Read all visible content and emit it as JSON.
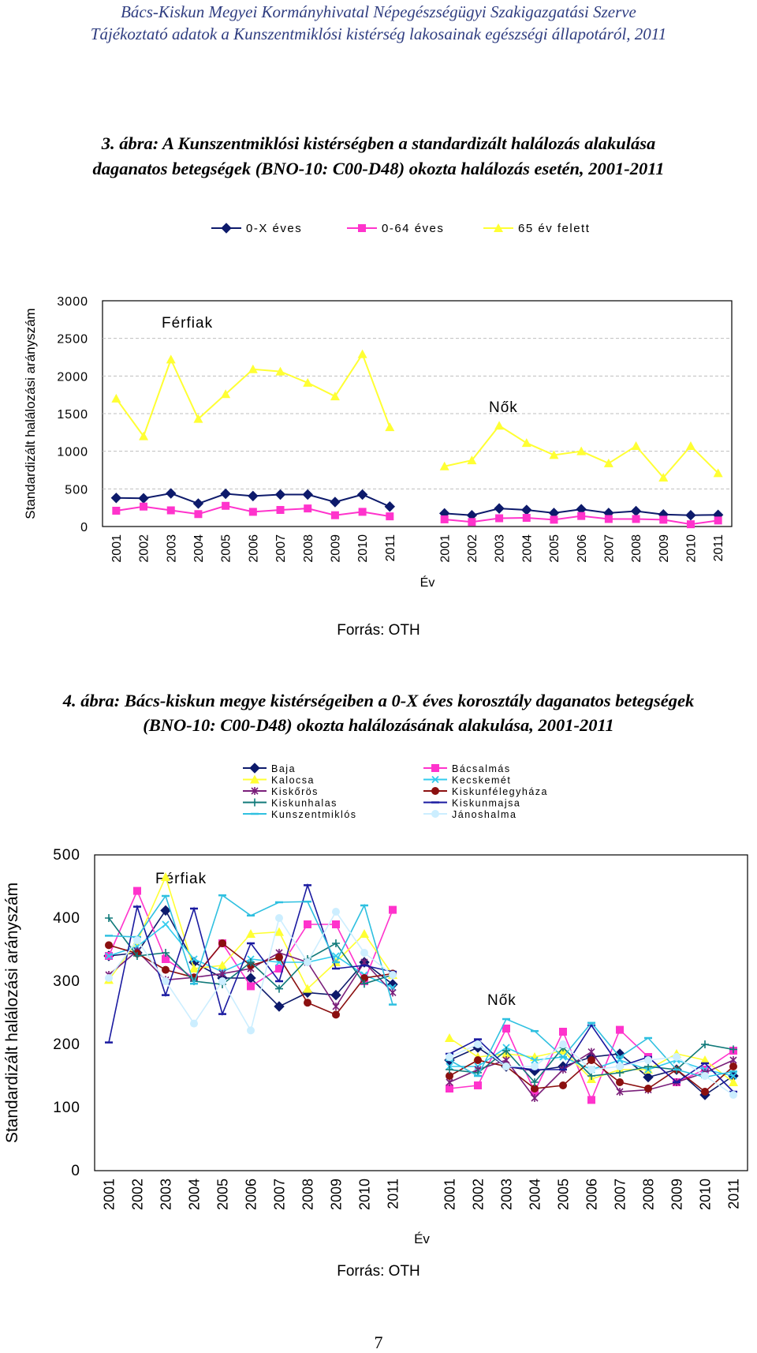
{
  "header": {
    "line1": "Bács-Kiskun Megyei Kormányhivatal Népegészségügyi Szakigazgatási Szerve",
    "line2": "Tájékoztató adatok a Kunszentmiklósi kistérség lakosainak egészségi állapotáról, 2011"
  },
  "figure3": {
    "caption_line1": "3. ábra: A Kunszentmiklósi kistérségben a standardizált halálozás alakulása",
    "caption_line2": "daganatos betegségek (BNO-10: C00-D48) okozta halálozás esetén, 2001-2011",
    "source": "Forrás: OTH"
  },
  "figure4": {
    "caption_line1": "4. ábra: Bács-kiskun megye kistérségeiben a 0-X éves korosztály daganatos betegségek",
    "caption_line2": "(BNO-10: C00-D48) okozta halálozásának alakulása, 2001-2011",
    "source": "Forrás: OTH"
  },
  "page_number": "7",
  "chart_data": [
    {
      "type": "line",
      "ylabel": "Standardizált halálozási arányszám",
      "xlabel": "Év",
      "ylim": [
        0,
        3000
      ],
      "yticks": [
        0,
        500,
        1000,
        1500,
        2000,
        2500,
        3000
      ],
      "grid": true,
      "legend_position": "top",
      "groups": [
        {
          "label": "Férfiak",
          "categories": [
            "2001",
            "2002",
            "2003",
            "2004",
            "2005",
            "2006",
            "2007",
            "2008",
            "2009",
            "2010",
            "2011"
          ]
        },
        {
          "label": "Nők",
          "categories": [
            "2001",
            "2002",
            "2003",
            "2004",
            "2005",
            "2006",
            "2007",
            "2008",
            "2009",
            "2010",
            "2011"
          ]
        }
      ],
      "series": [
        {
          "name": "0-X éves",
          "color": "#0d1a6b",
          "marker": "diamond",
          "men": [
            380,
            375,
            440,
            305,
            435,
            405,
            425,
            425,
            325,
            425,
            265
          ],
          "women": [
            175,
            150,
            240,
            220,
            180,
            230,
            180,
            205,
            160,
            150,
            155
          ]
        },
        {
          "name": "0-64 éves",
          "color": "#ff33cc",
          "marker": "square",
          "men": [
            210,
            265,
            215,
            165,
            275,
            195,
            220,
            240,
            150,
            195,
            135
          ],
          "women": [
            95,
            60,
            110,
            115,
            90,
            140,
            100,
            100,
            90,
            30,
            80
          ]
        },
        {
          "name": "65 év felett",
          "color": "#ffff33",
          "marker": "triangle",
          "men": [
            1700,
            1200,
            2220,
            1430,
            1760,
            2090,
            2060,
            1910,
            1730,
            2290,
            1320
          ],
          "women": [
            800,
            880,
            1340,
            1110,
            950,
            1000,
            840,
            1070,
            650,
            1070,
            710
          ]
        }
      ]
    },
    {
      "type": "line",
      "ylabel": "Standardizált halálozási arányszám",
      "xlabel": "Év",
      "ylim": [
        0,
        500
      ],
      "yticks": [
        0,
        100,
        200,
        300,
        400,
        500
      ],
      "grid": false,
      "legend_position": "top",
      "groups": [
        {
          "label": "Férfiak",
          "categories": [
            "2001",
            "2002",
            "2003",
            "2004",
            "2005",
            "2006",
            "2007",
            "2008",
            "2009",
            "2010",
            "2011"
          ]
        },
        {
          "label": "Nők",
          "categories": [
            "2001",
            "2002",
            "2003",
            "2004",
            "2005",
            "2006",
            "2007",
            "2008",
            "2009",
            "2010",
            "2011"
          ]
        }
      ],
      "series": [
        {
          "name": "Baja",
          "color": "#0d1a6b",
          "marker": "diamond",
          "men": [
            340,
            345,
            412,
            330,
            305,
            305,
            260,
            282,
            278,
            330,
            295
          ],
          "women": [
            175,
            195,
            165,
            158,
            165,
            180,
            185,
            148,
            160,
            120,
            150
          ]
        },
        {
          "name": "Bácsalmás",
          "color": "#ff33cc",
          "marker": "square",
          "men": [
            340,
            443,
            335,
            305,
            360,
            292,
            320,
            390,
            390,
            300,
            413
          ],
          "women": [
            130,
            135,
            225,
            125,
            220,
            112,
            223,
            180,
            140,
            160,
            190
          ]
        },
        {
          "name": "Kalocsa",
          "color": "#ffff33",
          "marker": "triangle",
          "men": [
            302,
            363,
            465,
            320,
            325,
            375,
            378,
            288,
            330,
            375,
            310
          ],
          "women": [
            210,
            180,
            185,
            180,
            190,
            145,
            160,
            160,
            185,
            175,
            140
          ]
        },
        {
          "name": "Kecskemét",
          "color": "#33ccee",
          "marker": "x",
          "men": [
            340,
            355,
            390,
            335,
            315,
            335,
            330,
            330,
            340,
            310,
            290
          ],
          "women": [
            165,
            165,
            195,
            175,
            180,
            160,
            175,
            160,
            175,
            160,
            150
          ]
        },
        {
          "name": "Kiskőrös",
          "color": "#7a1f7a",
          "marker": "asterisk",
          "men": [
            310,
            348,
            302,
            306,
            312,
            320,
            345,
            330,
            260,
            330,
            282
          ],
          "women": [
            140,
            160,
            175,
            115,
            160,
            188,
            125,
            128,
            140,
            155,
            175
          ]
        },
        {
          "name": "Kiskunfélegyháza",
          "color": "#8b1010",
          "marker": "circle",
          "men": [
            357,
            344,
            318,
            306,
            360,
            325,
            338,
            266,
            247,
            305,
            312
          ],
          "women": [
            150,
            175,
            165,
            130,
            135,
            175,
            140,
            130,
            160,
            125,
            165
          ]
        },
        {
          "name": "Kiskunhalas",
          "color": "#117a7a",
          "marker": "plus",
          "men": [
            400,
            340,
            345,
            300,
            295,
            330,
            288,
            335,
            360,
            296,
            310
          ],
          "women": [
            160,
            155,
            190,
            140,
            195,
            150,
            155,
            165,
            160,
            200,
            192
          ]
        },
        {
          "name": "Kiskunmajsa",
          "color": "#1a1aa0",
          "marker": "dash",
          "men": [
            203,
            418,
            278,
            415,
            248,
            360,
            300,
            452,
            320,
            325,
            315
          ],
          "women": [
            185,
            208,
            165,
            160,
            160,
            230,
            165,
            180,
            140,
            170,
            125
          ]
        },
        {
          "name": "Kunszentmiklós",
          "color": "#2fc0e0",
          "marker": "dash",
          "men": [
            372,
            370,
            435,
            296,
            436,
            404,
            425,
            426,
            330,
            420,
            263
          ],
          "women": [
            175,
            150,
            240,
            221,
            180,
            234,
            180,
            210,
            160,
            148,
            157
          ]
        },
        {
          "name": "Jánoshalma",
          "color": "#cceeff",
          "marker": "circle",
          "men": [
            305,
            365,
            300,
            233,
            300,
            222,
            400,
            330,
            410,
            345,
            310
          ],
          "women": [
            180,
            200,
            165,
            165,
            200,
            160,
            165,
            175,
            180,
            150,
            120
          ]
        }
      ]
    }
  ]
}
